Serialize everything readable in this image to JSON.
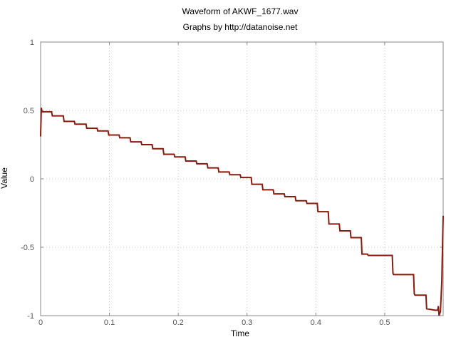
{
  "chart_data": {
    "type": "line",
    "title": "Waveform of AKWF_1677.wav",
    "subtitle": "Graphs by http://datanoise.net",
    "xlabel": "Time",
    "ylabel": "Value",
    "xlim": [
      0,
      0.585
    ],
    "ylim": [
      -1,
      1
    ],
    "xticks": [
      0,
      0.1,
      0.2,
      0.3,
      0.4,
      0.5
    ],
    "xtick_labels": [
      "0",
      "0.1",
      "0.2",
      "0.3",
      "0.4",
      "0.5"
    ],
    "yticks": [
      -1,
      -0.5,
      0,
      0.5,
      1
    ],
    "ytick_labels": [
      "-1",
      "-0.5",
      "0",
      "0.5",
      "1"
    ],
    "grid": true,
    "series": [
      {
        "color": "#8b1a0e",
        "x": [
          0,
          0.001,
          0.002,
          0.003,
          0.016,
          0.017,
          0.033,
          0.034,
          0.049,
          0.05,
          0.066,
          0.067,
          0.082,
          0.083,
          0.098,
          0.099,
          0.114,
          0.115,
          0.13,
          0.131,
          0.146,
          0.147,
          0.162,
          0.163,
          0.178,
          0.179,
          0.194,
          0.195,
          0.21,
          0.211,
          0.226,
          0.227,
          0.242,
          0.243,
          0.258,
          0.259,
          0.274,
          0.275,
          0.29,
          0.291,
          0.306,
          0.307,
          0.322,
          0.323,
          0.338,
          0.339,
          0.354,
          0.355,
          0.37,
          0.371,
          0.386,
          0.387,
          0.402,
          0.403,
          0.418,
          0.419,
          0.434,
          0.435,
          0.45,
          0.451,
          0.466,
          0.467,
          0.475,
          0.476,
          0.491,
          0.492,
          0.5,
          0.501,
          0.509,
          0.51,
          0.511,
          0.512,
          0.513,
          0.526,
          0.527,
          0.528,
          0.529,
          0.53,
          0.542,
          0.543,
          0.544,
          0.545,
          0.546,
          0.557,
          0.558,
          0.559,
          0.56,
          0.561,
          0.573,
          0.574,
          0.575,
          0.576,
          0.577,
          0.578,
          0.579,
          0.581,
          0.583,
          0.584,
          0.585
        ],
        "y": [
          0.31,
          0.52,
          0.49,
          0.49,
          0.49,
          0.46,
          0.46,
          0.42,
          0.42,
          0.4,
          0.4,
          0.37,
          0.37,
          0.35,
          0.35,
          0.32,
          0.32,
          0.3,
          0.3,
          0.27,
          0.27,
          0.25,
          0.25,
          0.22,
          0.22,
          0.18,
          0.18,
          0.16,
          0.16,
          0.13,
          0.13,
          0.11,
          0.11,
          0.08,
          0.08,
          0.05,
          0.05,
          0.03,
          0.03,
          0.01,
          0.01,
          -0.04,
          -0.04,
          -0.08,
          -0.08,
          -0.11,
          -0.11,
          -0.13,
          -0.13,
          -0.16,
          -0.16,
          -0.18,
          -0.18,
          -0.24,
          -0.24,
          -0.33,
          -0.33,
          -0.38,
          -0.38,
          -0.43,
          -0.43,
          -0.55,
          -0.55,
          -0.56,
          -0.56,
          -0.56,
          -0.56,
          -0.56,
          -0.56,
          -0.56,
          -0.56,
          -0.69,
          -0.7,
          -0.7,
          -0.7,
          -0.7,
          -0.7,
          -0.7,
          -0.7,
          -0.84,
          -0.85,
          -0.85,
          -0.85,
          -0.85,
          -0.85,
          -0.85,
          -0.85,
          -0.95,
          -0.96,
          -0.96,
          -0.96,
          -0.96,
          -0.96,
          -0.93,
          -1.0,
          -0.97,
          -0.75,
          -0.5,
          -0.27
        ]
      }
    ]
  }
}
